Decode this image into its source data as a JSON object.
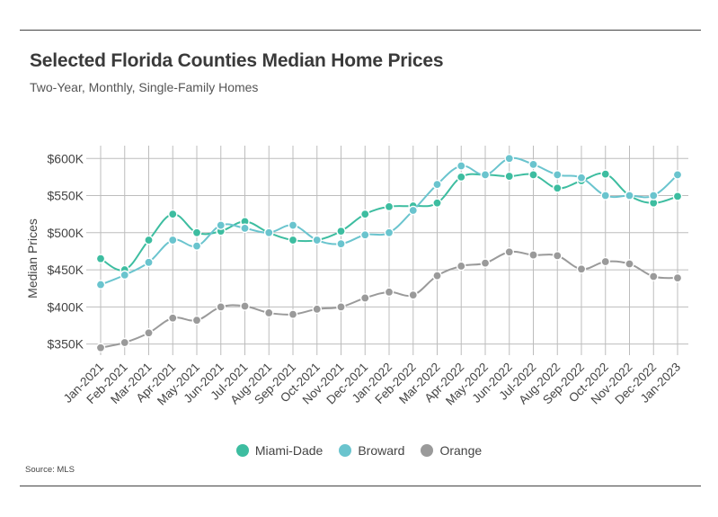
{
  "title": "Selected Florida Counties Median Home Prices",
  "subtitle": "Two-Year, Monthly, Single-Family Homes",
  "source": "Source: MLS",
  "chart_data": {
    "type": "line",
    "title": "Selected Florida Counties Median Home Prices",
    "subtitle": "Two-Year, Monthly, Single-Family Homes",
    "xlabel": "",
    "ylabel": "Median Prices",
    "categories": [
      "Jan-2021",
      "Feb-2021",
      "Mar-2021",
      "Apr-2021",
      "May-2021",
      "Jun-2021",
      "Jul-2021",
      "Aug-2021",
      "Sep-2021",
      "Oct-2021",
      "Nov-2021",
      "Dec-2021",
      "Jan-2022",
      "Feb-2022",
      "Mar-2022",
      "Apr-2022",
      "May-2022",
      "Jun-2022",
      "Jul-2022",
      "Aug-2022",
      "Sep-2022",
      "Oct-2022",
      "Nov-2022",
      "Dec-2022",
      "Jan-2023"
    ],
    "ylim": [
      335000,
      610000
    ],
    "yticks": [
      350000,
      400000,
      450000,
      500000,
      550000,
      600000
    ],
    "ytick_labels": [
      "$350K",
      "$400K",
      "$450K",
      "$500K",
      "$550K",
      "$600K"
    ],
    "grid": true,
    "legend_position": "bottom-center",
    "series": [
      {
        "name": "Miami-Dade",
        "color": "#3dbda0",
        "values": [
          465000,
          450000,
          490000,
          525000,
          500000,
          502000,
          515000,
          500000,
          490000,
          490000,
          502000,
          525000,
          535000,
          536000,
          540000,
          575000,
          578000,
          576000,
          578000,
          560000,
          570000,
          579000,
          550000,
          540000,
          549000
        ]
      },
      {
        "name": "Broward",
        "color": "#6ac4ce",
        "values": [
          430000,
          443000,
          460000,
          490000,
          482000,
          510000,
          506000,
          500000,
          510000,
          490000,
          485000,
          497000,
          500000,
          530000,
          565000,
          590000,
          578000,
          600000,
          592000,
          578000,
          574000,
          550000,
          550000,
          550000,
          578000
        ]
      },
      {
        "name": "Orange",
        "color": "#9a9a9a",
        "values": [
          345000,
          352000,
          365000,
          385000,
          382000,
          400000,
          401000,
          392000,
          390000,
          397000,
          400000,
          412000,
          420000,
          416000,
          442000,
          455000,
          459000,
          474000,
          470000,
          469000,
          451000,
          461000,
          458000,
          441000,
          439000
        ]
      }
    ]
  }
}
